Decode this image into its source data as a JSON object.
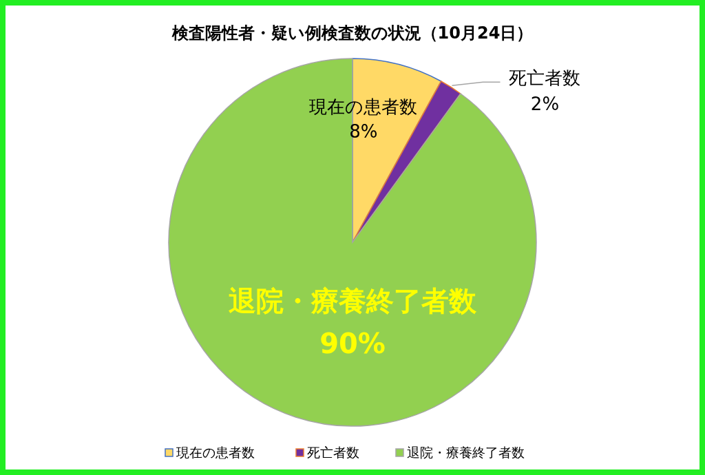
{
  "chart_data": {
    "type": "pie",
    "title": "検査陽性者・疑い例検査数の状況（10月24日）",
    "categories": [
      "現在の患者数",
      "死亡者数",
      "退院・療養終了者数"
    ],
    "values": [
      8,
      2,
      90
    ],
    "colors": [
      "#ffd966",
      "#7030a0",
      "#92d050"
    ],
    "value_labels": [
      "8%",
      "2%",
      "90%"
    ],
    "legend": "bottom"
  }
}
